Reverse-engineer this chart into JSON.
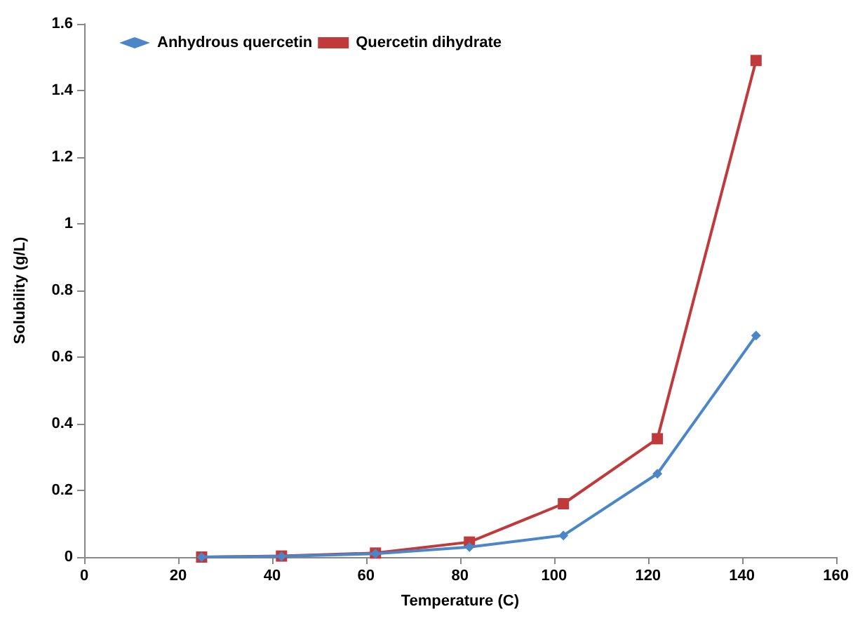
{
  "chart_data": {
    "type": "line",
    "xlabel": "Temperature (C)",
    "ylabel": "Solubility (g/L)",
    "x": [
      25,
      42,
      62,
      82,
      102,
      122,
      143
    ],
    "series": [
      {
        "name": "Anhydrous quercetin",
        "color": "#4a86c8",
        "marker": "diamond",
        "values": [
          0,
          0.002,
          0.01,
          0.03,
          0.065,
          0.25,
          0.665
        ]
      },
      {
        "name": "Quercetin dihydrate",
        "color": "#c0393b",
        "marker": "square",
        "values": [
          0,
          0.003,
          0.012,
          0.045,
          0.16,
          0.355,
          1.49
        ]
      }
    ],
    "xlim": [
      0,
      160
    ],
    "xticks": [
      0,
      20,
      40,
      60,
      80,
      100,
      120,
      140,
      160
    ],
    "ylim": [
      0,
      1.6
    ],
    "yticks": [
      0,
      0.2,
      0.4,
      0.6,
      0.8,
      1,
      1.2,
      1.4,
      1.6
    ],
    "grid": false,
    "legend": "top left",
    "line_style": "solid"
  }
}
